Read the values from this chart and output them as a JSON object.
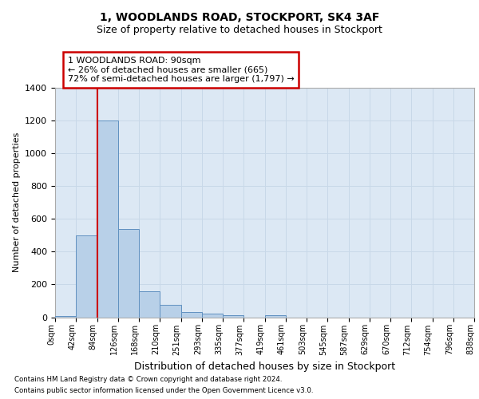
{
  "title": "1, WOODLANDS ROAD, STOCKPORT, SK4 3AF",
  "subtitle": "Size of property relative to detached houses in Stockport",
  "xlabel": "Distribution of detached houses by size in Stockport",
  "ylabel": "Number of detached properties",
  "bin_labels": [
    "0sqm",
    "42sqm",
    "84sqm",
    "126sqm",
    "168sqm",
    "210sqm",
    "251sqm",
    "293sqm",
    "335sqm",
    "377sqm",
    "419sqm",
    "461sqm",
    "503sqm",
    "545sqm",
    "587sqm",
    "629sqm",
    "670sqm",
    "712sqm",
    "754sqm",
    "796sqm",
    "838sqm"
  ],
  "bar_heights": [
    5,
    500,
    1200,
    540,
    160,
    75,
    30,
    20,
    10,
    0,
    10,
    0,
    0,
    0,
    0,
    0,
    0,
    0,
    0,
    0
  ],
  "bar_color": "#b8d0e8",
  "bar_edge_color": "#6090c0",
  "property_line_x": 2,
  "property_line_color": "#cc0000",
  "annotation_text": "1 WOODLANDS ROAD: 90sqm\n← 26% of detached houses are smaller (665)\n72% of semi-detached houses are larger (1,797) →",
  "annotation_box_color": "#ffffff",
  "annotation_box_edge": "#cc0000",
  "ylim": [
    0,
    1400
  ],
  "yticks": [
    0,
    200,
    400,
    600,
    800,
    1000,
    1200,
    1400
  ],
  "grid_color": "#c8d8e8",
  "background_color": "#dce8f4",
  "footer_line1": "Contains HM Land Registry data © Crown copyright and database right 2024.",
  "footer_line2": "Contains public sector information licensed under the Open Government Licence v3.0."
}
